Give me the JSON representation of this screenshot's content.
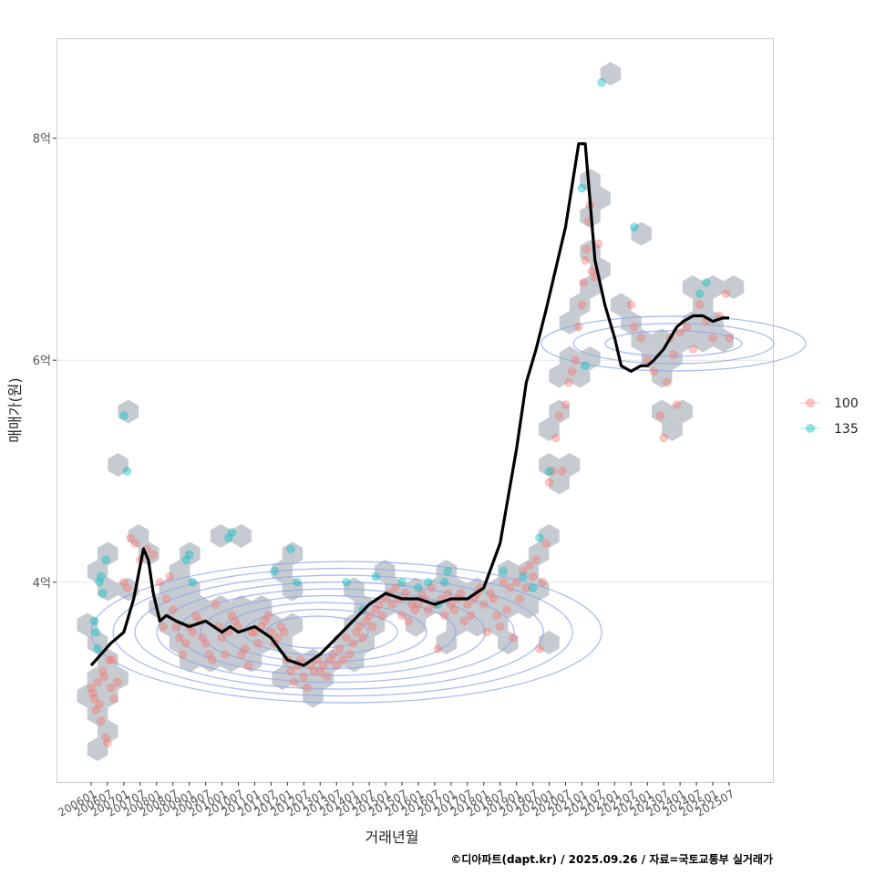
{
  "chart_data": {
    "type": "scatter",
    "title": "",
    "xlabel": "거래년월",
    "ylabel": "매매가(원)",
    "caption": "©디아파트(dapt.kr) / 2025.09.26 / 자료=국토교통부 실거래가",
    "x_range": [
      "200601",
      "202509"
    ],
    "ylim": [
      2.2,
      8.9
    ],
    "y_ticks": [
      {
        "value": 4,
        "label": "4억"
      },
      {
        "value": 6,
        "label": "6억"
      },
      {
        "value": 8,
        "label": "8억"
      }
    ],
    "x_tick_labels": [
      "200601",
      "200607",
      "200701",
      "200707",
      "200801",
      "200807",
      "200901",
      "200907",
      "201001",
      "201007",
      "201101",
      "201107",
      "201201",
      "201207",
      "201301",
      "201307",
      "201401",
      "201407",
      "201501",
      "201507",
      "201601",
      "201607",
      "201701",
      "201707",
      "201801",
      "201807",
      "201901",
      "201907",
      "202001",
      "202007",
      "202101",
      "202107",
      "202201",
      "202207",
      "202301",
      "202307",
      "202401",
      "202407",
      "202501",
      "202507"
    ],
    "legend": [
      {
        "name": "100",
        "color": "#F8766D"
      },
      {
        "name": "135",
        "color": "#00BFC4"
      }
    ],
    "colors": {
      "hex_fill": "#BFC5CB",
      "contour": "#8FA7E8",
      "trend": "#000000",
      "grid": "#E5E5E5",
      "panel_border": "#CCCCCC"
    },
    "trend_line": {
      "name": "moving-average",
      "x": [
        2006.0,
        2006.3,
        2006.6,
        2007.0,
        2007.3,
        2007.6,
        2007.75,
        2007.9,
        2008.1,
        2008.3,
        2008.6,
        2009.0,
        2009.5,
        2010.0,
        2010.25,
        2010.5,
        2011.0,
        2011.5,
        2012.0,
        2012.5,
        2013.0,
        2013.5,
        2014.0,
        2014.5,
        2015.0,
        2015.5,
        2016.0,
        2016.5,
        2017.0,
        2017.5,
        2018.0,
        2018.5,
        2019.0,
        2019.3,
        2019.6,
        2019.9,
        2020.1,
        2020.5,
        2020.9,
        2021.1,
        2021.4,
        2021.7,
        2022.0,
        2022.2,
        2022.5,
        2022.8,
        2023.0,
        2023.2,
        2023.5,
        2023.7,
        2023.9,
        2024.1,
        2024.4,
        2024.7,
        2025.0,
        2025.3,
        2025.5
      ],
      "values": [
        3.25,
        3.35,
        3.45,
        3.55,
        3.85,
        4.3,
        4.2,
        3.9,
        3.65,
        3.7,
        3.65,
        3.6,
        3.65,
        3.55,
        3.6,
        3.55,
        3.6,
        3.5,
        3.3,
        3.25,
        3.35,
        3.5,
        3.65,
        3.8,
        3.9,
        3.85,
        3.85,
        3.8,
        3.85,
        3.85,
        3.95,
        4.35,
        5.2,
        5.8,
        6.1,
        6.45,
        6.7,
        7.2,
        7.95,
        7.95,
        6.9,
        6.5,
        6.2,
        5.95,
        5.9,
        5.95,
        5.95,
        6.0,
        6.1,
        6.2,
        6.3,
        6.35,
        6.4,
        6.4,
        6.35,
        6.38,
        6.38
      ],
      "x_display_max": 2025.55
    },
    "series": [
      {
        "name": "100",
        "color": "#F8766D",
        "points": [
          [
            2006.0,
            3.05
          ],
          [
            2006.05,
            3.0
          ],
          [
            2006.1,
            2.95
          ],
          [
            2006.15,
            2.85
          ],
          [
            2006.2,
            3.1
          ],
          [
            2006.25,
            2.9
          ],
          [
            2006.3,
            2.75
          ],
          [
            2006.35,
            3.2
          ],
          [
            2006.4,
            3.15
          ],
          [
            2006.45,
            2.6
          ],
          [
            2006.5,
            2.55
          ],
          [
            2006.55,
            3.3
          ],
          [
            2006.6,
            3.05
          ],
          [
            2006.65,
            3.3
          ],
          [
            2006.7,
            2.95
          ],
          [
            2006.8,
            3.1
          ],
          [
            2007.0,
            4.0
          ],
          [
            2007.1,
            3.95
          ],
          [
            2007.2,
            4.4
          ],
          [
            2007.35,
            4.35
          ],
          [
            2007.5,
            4.2
          ],
          [
            2007.7,
            4.3
          ],
          [
            2007.9,
            4.25
          ],
          [
            2008.1,
            4.0
          ],
          [
            2008.2,
            3.6
          ],
          [
            2008.3,
            3.85
          ],
          [
            2008.4,
            4.05
          ],
          [
            2008.5,
            3.75
          ],
          [
            2008.6,
            3.6
          ],
          [
            2008.7,
            3.5
          ],
          [
            2008.8,
            3.35
          ],
          [
            2008.9,
            3.45
          ],
          [
            2009.0,
            3.6
          ],
          [
            2009.1,
            3.55
          ],
          [
            2009.2,
            3.7
          ],
          [
            2009.3,
            3.65
          ],
          [
            2009.4,
            3.5
          ],
          [
            2009.5,
            3.45
          ],
          [
            2009.6,
            3.35
          ],
          [
            2009.7,
            3.3
          ],
          [
            2009.8,
            3.8
          ],
          [
            2009.9,
            3.6
          ],
          [
            2010.0,
            3.5
          ],
          [
            2010.1,
            3.35
          ],
          [
            2010.2,
            3.55
          ],
          [
            2010.3,
            3.7
          ],
          [
            2010.4,
            3.65
          ],
          [
            2010.5,
            3.6
          ],
          [
            2010.6,
            3.35
          ],
          [
            2010.7,
            3.4
          ],
          [
            2010.8,
            3.25
          ],
          [
            2010.9,
            3.55
          ],
          [
            2011.0,
            3.55
          ],
          [
            2011.1,
            3.45
          ],
          [
            2011.2,
            3.6
          ],
          [
            2011.3,
            3.65
          ],
          [
            2011.4,
            3.7
          ],
          [
            2011.5,
            3.55
          ],
          [
            2011.6,
            3.45
          ],
          [
            2011.7,
            3.5
          ],
          [
            2011.8,
            3.6
          ],
          [
            2011.9,
            3.55
          ],
          [
            2012.0,
            3.3
          ],
          [
            2012.1,
            3.2
          ],
          [
            2012.2,
            3.1
          ],
          [
            2012.3,
            3.25
          ],
          [
            2012.4,
            3.3
          ],
          [
            2012.5,
            3.15
          ],
          [
            2012.6,
            3.05
          ],
          [
            2012.7,
            3.25
          ],
          [
            2012.8,
            3.2
          ],
          [
            2012.9,
            3.3
          ],
          [
            2013.0,
            3.2
          ],
          [
            2013.1,
            3.25
          ],
          [
            2013.2,
            3.15
          ],
          [
            2013.3,
            3.3
          ],
          [
            2013.4,
            3.35
          ],
          [
            2013.5,
            3.25
          ],
          [
            2013.6,
            3.4
          ],
          [
            2013.7,
            3.3
          ],
          [
            2013.8,
            3.5
          ],
          [
            2013.9,
            3.35
          ],
          [
            2014.0,
            3.45
          ],
          [
            2014.1,
            3.55
          ],
          [
            2014.2,
            3.6
          ],
          [
            2014.3,
            3.5
          ],
          [
            2014.4,
            3.65
          ],
          [
            2014.5,
            3.7
          ],
          [
            2014.6,
            3.6
          ],
          [
            2014.7,
            3.75
          ],
          [
            2014.8,
            3.8
          ],
          [
            2014.9,
            3.7
          ],
          [
            2015.0,
            3.85
          ],
          [
            2015.1,
            3.9
          ],
          [
            2015.2,
            3.8
          ],
          [
            2015.3,
            3.95
          ],
          [
            2015.4,
            3.85
          ],
          [
            2015.5,
            3.7
          ],
          [
            2015.6,
            3.9
          ],
          [
            2015.7,
            3.65
          ],
          [
            2015.8,
            3.8
          ],
          [
            2015.9,
            3.75
          ],
          [
            2016.0,
            3.8
          ],
          [
            2016.1,
            3.9
          ],
          [
            2016.2,
            3.85
          ],
          [
            2016.3,
            3.75
          ],
          [
            2016.4,
            3.95
          ],
          [
            2016.5,
            3.8
          ],
          [
            2016.6,
            3.4
          ],
          [
            2016.7,
            3.85
          ],
          [
            2016.8,
            3.7
          ],
          [
            2016.9,
            3.9
          ],
          [
            2017.0,
            3.8
          ],
          [
            2017.1,
            3.75
          ],
          [
            2017.2,
            3.85
          ],
          [
            2017.3,
            3.9
          ],
          [
            2017.4,
            3.65
          ],
          [
            2017.5,
            3.8
          ],
          [
            2017.6,
            3.7
          ],
          [
            2017.7,
            3.85
          ],
          [
            2017.8,
            3.9
          ],
          [
            2017.9,
            3.95
          ],
          [
            2018.0,
            3.8
          ],
          [
            2018.1,
            3.55
          ],
          [
            2018.2,
            3.9
          ],
          [
            2018.3,
            3.85
          ],
          [
            2018.4,
            3.7
          ],
          [
            2018.5,
            3.6
          ],
          [
            2018.6,
            4.0
          ],
          [
            2018.7,
            3.75
          ],
          [
            2018.8,
            3.95
          ],
          [
            2018.9,
            3.5
          ],
          [
            2019.0,
            4.0
          ],
          [
            2019.1,
            3.85
          ],
          [
            2019.2,
            4.1
          ],
          [
            2019.3,
            3.95
          ],
          [
            2019.4,
            4.15
          ],
          [
            2019.5,
            4.05
          ],
          [
            2019.6,
            4.2
          ],
          [
            2019.7,
            3.4
          ],
          [
            2019.8,
            4.0
          ],
          [
            2019.9,
            4.35
          ],
          [
            2020.0,
            4.9
          ],
          [
            2020.1,
            5.0
          ],
          [
            2020.2,
            5.3
          ],
          [
            2020.3,
            5.5
          ],
          [
            2020.4,
            5.0
          ],
          [
            2020.5,
            5.6
          ],
          [
            2020.6,
            5.8
          ],
          [
            2020.7,
            5.9
          ],
          [
            2020.8,
            6.0
          ],
          [
            2020.9,
            6.3
          ],
          [
            2021.0,
            6.5
          ],
          [
            2021.05,
            6.7
          ],
          [
            2021.1,
            6.9
          ],
          [
            2021.15,
            7.0
          ],
          [
            2021.2,
            7.25
          ],
          [
            2021.25,
            7.4
          ],
          [
            2021.3,
            6.8
          ],
          [
            2021.4,
            6.75
          ],
          [
            2021.5,
            7.05
          ],
          [
            2022.5,
            6.5
          ],
          [
            2022.6,
            6.3
          ],
          [
            2022.8,
            6.2
          ],
          [
            2023.0,
            6.0
          ],
          [
            2023.2,
            5.9
          ],
          [
            2023.4,
            5.5
          ],
          [
            2023.5,
            5.3
          ],
          [
            2023.6,
            5.8
          ],
          [
            2023.7,
            6.2
          ],
          [
            2023.8,
            6.05
          ],
          [
            2023.9,
            5.6
          ],
          [
            2024.0,
            6.25
          ],
          [
            2024.2,
            6.3
          ],
          [
            2024.4,
            6.1
          ],
          [
            2024.6,
            6.5
          ],
          [
            2024.8,
            6.35
          ],
          [
            2025.0,
            6.2
          ],
          [
            2025.2,
            6.4
          ],
          [
            2025.4,
            6.6
          ],
          [
            2025.5,
            6.2
          ]
        ]
      },
      {
        "name": "135",
        "color": "#00BFC4",
        "points": [
          [
            2006.1,
            3.65
          ],
          [
            2006.15,
            3.55
          ],
          [
            2006.2,
            3.4
          ],
          [
            2006.25,
            4.0
          ],
          [
            2006.3,
            4.05
          ],
          [
            2006.35,
            3.9
          ],
          [
            2006.45,
            4.2
          ],
          [
            2007.0,
            5.5
          ],
          [
            2007.1,
            5.0
          ],
          [
            2008.9,
            4.2
          ],
          [
            2009.0,
            4.25
          ],
          [
            2009.1,
            4.0
          ],
          [
            2010.2,
            4.4
          ],
          [
            2010.3,
            4.45
          ],
          [
            2011.6,
            4.1
          ],
          [
            2012.1,
            4.3
          ],
          [
            2012.3,
            4.0
          ],
          [
            2013.8,
            4.0
          ],
          [
            2014.3,
            3.75
          ],
          [
            2014.7,
            4.05
          ],
          [
            2015.5,
            4.0
          ],
          [
            2016.0,
            3.95
          ],
          [
            2016.3,
            4.0
          ],
          [
            2016.6,
            3.8
          ],
          [
            2016.8,
            4.0
          ],
          [
            2016.9,
            4.1
          ],
          [
            2018.6,
            4.1
          ],
          [
            2019.2,
            4.05
          ],
          [
            2019.5,
            3.95
          ],
          [
            2019.7,
            4.4
          ],
          [
            2020.0,
            5.0
          ],
          [
            2021.0,
            7.55
          ],
          [
            2021.1,
            5.95
          ],
          [
            2021.6,
            8.5
          ],
          [
            2022.6,
            7.2
          ],
          [
            2024.6,
            6.6
          ],
          [
            2024.8,
            6.7
          ]
        ]
      }
    ]
  }
}
